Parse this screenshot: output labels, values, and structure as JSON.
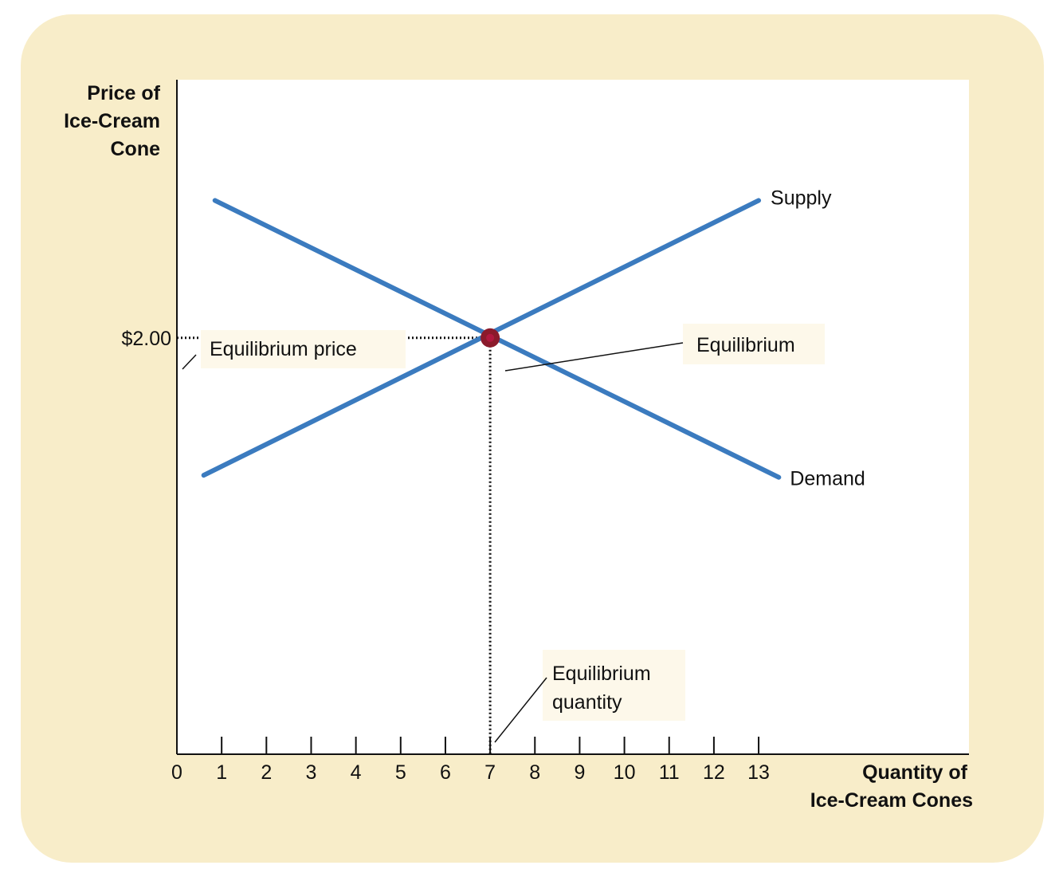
{
  "chart_data": {
    "type": "line",
    "title": "",
    "ylabel": [
      "Price of",
      "Ice-Cream",
      "Cone"
    ],
    "xlabel": [
      "Quantity of",
      "Ice-Cream Cones"
    ],
    "x_ticks": [
      "0",
      "1",
      "2",
      "3",
      "4",
      "5",
      "6",
      "7",
      "8",
      "9",
      "10",
      "11",
      "12",
      "13"
    ],
    "xlim": [
      0,
      17.7
    ],
    "y_ticks": [
      {
        "value": 2.0,
        "label": "$2.00"
      }
    ],
    "ylim": [
      0,
      3.24
    ],
    "series": [
      {
        "name": "Supply",
        "x": [
          0.6,
          13.0
        ],
        "y": [
          1.34,
          2.66
        ],
        "color": "#3b7bbf"
      },
      {
        "name": "Demand",
        "x": [
          0.85,
          13.45
        ],
        "y": [
          2.66,
          1.33
        ],
        "color": "#3b7bbf"
      }
    ],
    "equilibrium": {
      "x": 7,
      "y": 2.0,
      "color": "#8b1a2b"
    },
    "annotations": {
      "equilibrium_price": [
        "Equilibrium price"
      ],
      "equilibrium": [
        "Equilibrium"
      ],
      "equilibrium_quantity": [
        "Equilibrium",
        "quantity"
      ]
    },
    "grid": false,
    "colors": {
      "background": "#f8edc9",
      "plot": "#ffffff",
      "label_box": "#fdf8ea",
      "curve": "#3b7bbf",
      "point": "#8b1a2b"
    }
  }
}
